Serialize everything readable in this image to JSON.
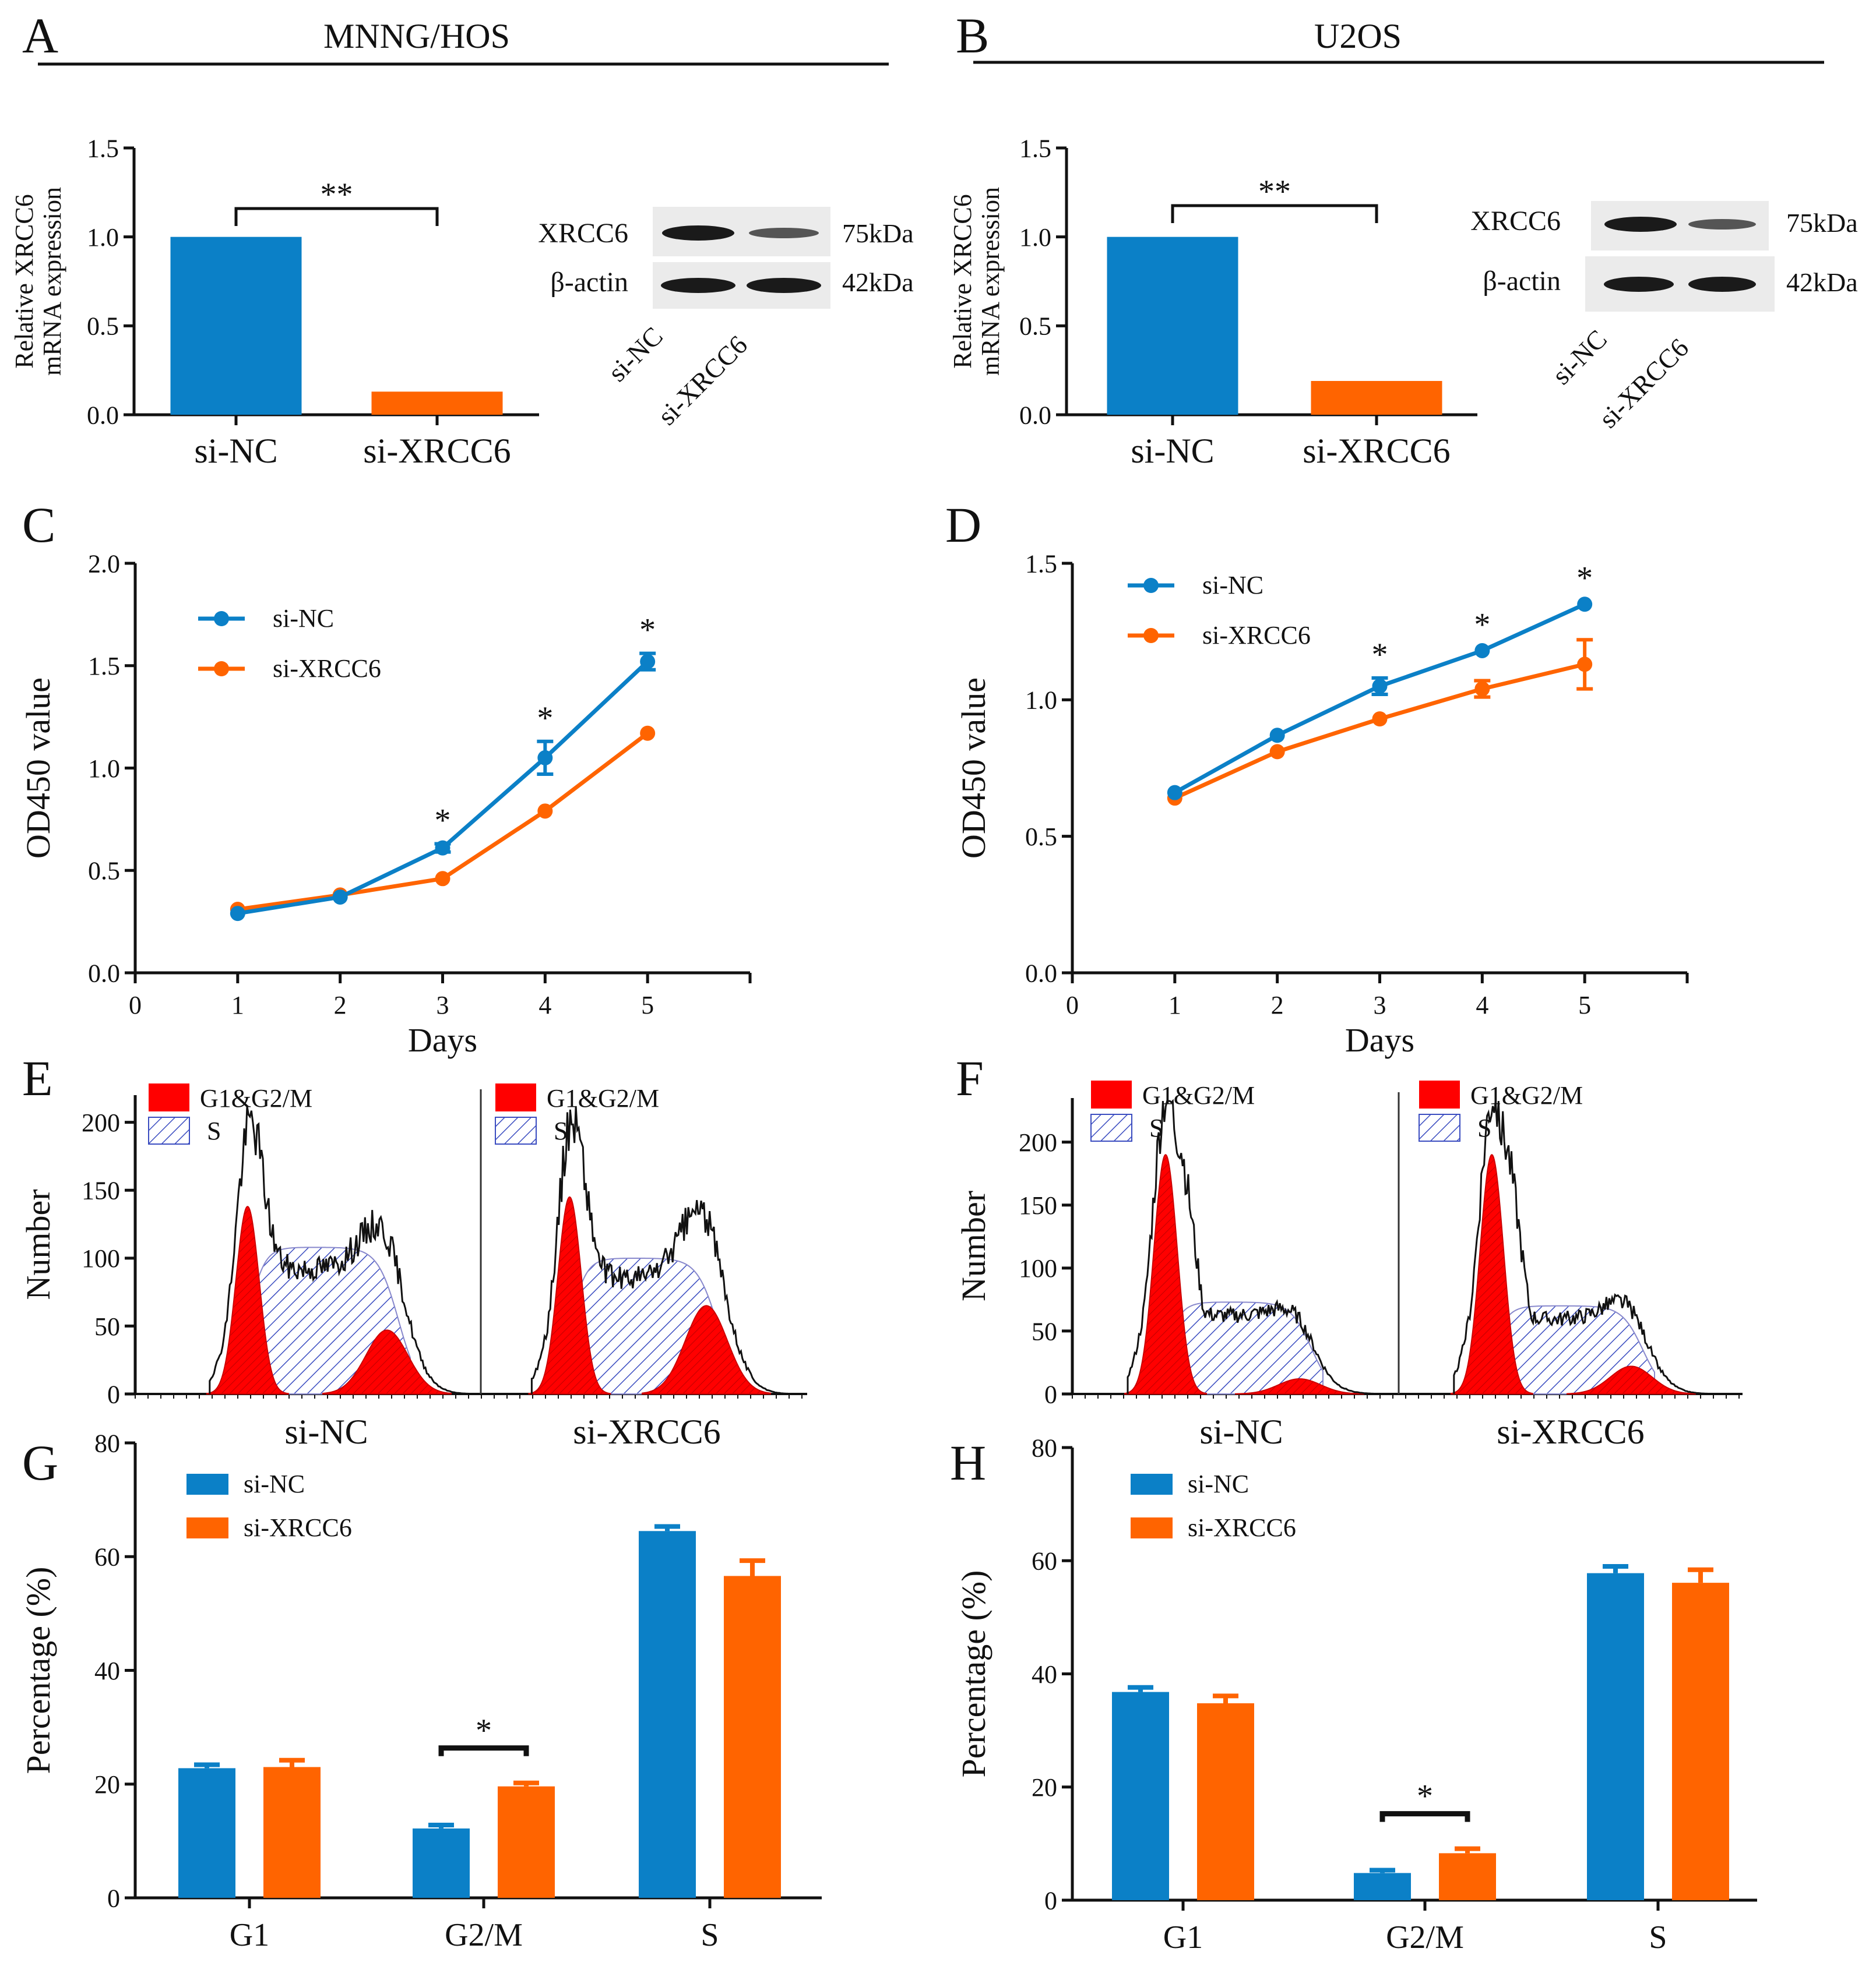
{
  "colors": {
    "nc": "#0b80c7",
    "xr": "#ff6400",
    "peak": "#ff0000",
    "hatch": "#3a4cc0",
    "axis": "#111111"
  },
  "panels": {
    "A": {
      "letter": "A",
      "cell_line": "MNNG/HOS"
    },
    "B": {
      "letter": "B",
      "cell_line": "U2OS"
    },
    "C": {
      "letter": "C"
    },
    "D": {
      "letter": "D"
    },
    "E": {
      "letter": "E"
    },
    "F": {
      "letter": "F"
    },
    "G": {
      "letter": "G"
    },
    "H": {
      "letter": "H"
    }
  },
  "western": {
    "protein": "XRCC6",
    "loading": "β-actin",
    "protein_size": "75kDa",
    "loading_size": "42kDa",
    "lanes": [
      "si-NC",
      "si-XRCC6"
    ]
  },
  "histogram_legend": {
    "peaks": "G1&G2/M",
    "s_phase": "S"
  },
  "chart_data": [
    {
      "id": "A",
      "type": "bar",
      "categories": [
        "si-NC",
        "si-XRCC6"
      ],
      "values": [
        1.0,
        0.13
      ],
      "ylabel": [
        "Relative XRCC6",
        "mRNA expression"
      ],
      "ylim": [
        0,
        1.5
      ],
      "yticks": [
        "0.0",
        "0.5",
        "1.0",
        "1.5"
      ],
      "significance": "**"
    },
    {
      "id": "B",
      "type": "bar",
      "categories": [
        "si-NC",
        "si-XRCC6"
      ],
      "values": [
        1.0,
        0.19
      ],
      "ylabel": [
        "Relative XRCC6",
        "mRNA expression"
      ],
      "ylim": [
        0,
        1.5
      ],
      "yticks": [
        "0.0",
        "0.5",
        "1.0",
        "1.5"
      ],
      "significance": "**"
    },
    {
      "id": "C",
      "type": "line",
      "x": [
        1,
        2,
        3,
        4,
        5
      ],
      "series": [
        {
          "name": "si-NC",
          "values": [
            0.29,
            0.37,
            0.61,
            1.05,
            1.52
          ],
          "err": [
            0.01,
            0.01,
            0.02,
            0.08,
            0.04
          ]
        },
        {
          "name": "si-XRCC6",
          "values": [
            0.31,
            0.38,
            0.46,
            0.79,
            1.17
          ],
          "err": [
            0.01,
            0.01,
            0.01,
            0.01,
            0.01
          ]
        }
      ],
      "xlabel": "Days",
      "ylabel": "OD450 value",
      "xlim": [
        0,
        6
      ],
      "ylim": [
        0,
        2.0
      ],
      "xticks": [
        "0",
        "1",
        "2",
        "3",
        "4",
        "5"
      ],
      "yticks": [
        "0.0",
        "0.5",
        "1.0",
        "1.5",
        "2.0"
      ],
      "significance": [
        {
          "x": 3,
          "label": "*"
        },
        {
          "x": 4,
          "label": "*"
        },
        {
          "x": 5,
          "label": "*"
        }
      ],
      "legend": "top-left"
    },
    {
      "id": "D",
      "type": "line",
      "x": [
        1,
        2,
        3,
        4,
        5
      ],
      "series": [
        {
          "name": "si-NC",
          "values": [
            0.66,
            0.87,
            1.05,
            1.18,
            1.35
          ],
          "err": [
            0.01,
            0.01,
            0.03,
            0.01,
            0.01
          ]
        },
        {
          "name": "si-XRCC6",
          "values": [
            0.64,
            0.81,
            0.93,
            1.04,
            1.13
          ],
          "err": [
            0.01,
            0.01,
            0.01,
            0.03,
            0.09
          ]
        }
      ],
      "xlabel": "Days",
      "ylabel": "OD450 value",
      "xlim": [
        0,
        6
      ],
      "ylim": [
        0,
        1.5
      ],
      "xticks": [
        "0",
        "1",
        "2",
        "3",
        "4",
        "5"
      ],
      "yticks": [
        "0.0",
        "0.5",
        "1.0",
        "1.5"
      ],
      "significance": [
        {
          "x": 3,
          "label": "*"
        },
        {
          "x": 4,
          "label": "*"
        },
        {
          "x": 5,
          "label": "*"
        }
      ],
      "legend": "top-left"
    },
    {
      "id": "E",
      "type": "area",
      "ylabel": "Number",
      "ylim": [
        0,
        220
      ],
      "yticks": [
        "0",
        "50",
        "100",
        "150",
        "200"
      ],
      "subpanels": [
        {
          "label": "si-NC",
          "g1_peak": 138,
          "s_plateau": 108,
          "g2_peak": 47
        },
        {
          "label": "si-XRCC6",
          "g1_peak": 145,
          "s_plateau": 100,
          "g2_peak": 65
        }
      ]
    },
    {
      "id": "F",
      "type": "area",
      "ylabel": "Number",
      "ylim": [
        0,
        235
      ],
      "yticks": [
        "0",
        "50",
        "100",
        "150",
        "200"
      ],
      "subpanels": [
        {
          "label": "si-NC",
          "g1_peak": 190,
          "s_plateau": 73,
          "g2_peak": 12
        },
        {
          "label": "si-XRCC6",
          "g1_peak": 190,
          "s_plateau": 70,
          "g2_peak": 22
        }
      ]
    },
    {
      "id": "G",
      "type": "bar",
      "categories": [
        "G1",
        "G2/M",
        "S"
      ],
      "series": [
        {
          "name": "si-NC",
          "values": [
            22.8,
            12.2,
            64.5
          ],
          "err": [
            0.6,
            0.6,
            0.8
          ]
        },
        {
          "name": "si-XRCC6",
          "values": [
            23.0,
            19.6,
            56.6
          ],
          "err": [
            1.2,
            0.6,
            2.7
          ]
        }
      ],
      "ylabel": "Percentage (%)",
      "ylim": [
        0,
        80
      ],
      "yticks": [
        "0",
        "20",
        "40",
        "60",
        "80"
      ],
      "significance": [
        {
          "category": "G2/M",
          "label": "*"
        }
      ],
      "legend": "top-left"
    },
    {
      "id": "H",
      "type": "bar",
      "categories": [
        "G1",
        "G2/M",
        "S"
      ],
      "series": [
        {
          "name": "si-NC",
          "values": [
            36.8,
            4.8,
            57.8
          ],
          "err": [
            0.8,
            0.5,
            1.2
          ]
        },
        {
          "name": "si-XRCC6",
          "values": [
            34.8,
            8.3,
            56.1
          ],
          "err": [
            1.3,
            0.8,
            2.3
          ]
        }
      ],
      "ylabel": "Percentage (%)",
      "ylim": [
        0,
        80
      ],
      "yticks": [
        "0",
        "20",
        "40",
        "60",
        "80"
      ],
      "significance": [
        {
          "category": "G2/M",
          "label": "*"
        }
      ],
      "legend": "top-left"
    }
  ]
}
